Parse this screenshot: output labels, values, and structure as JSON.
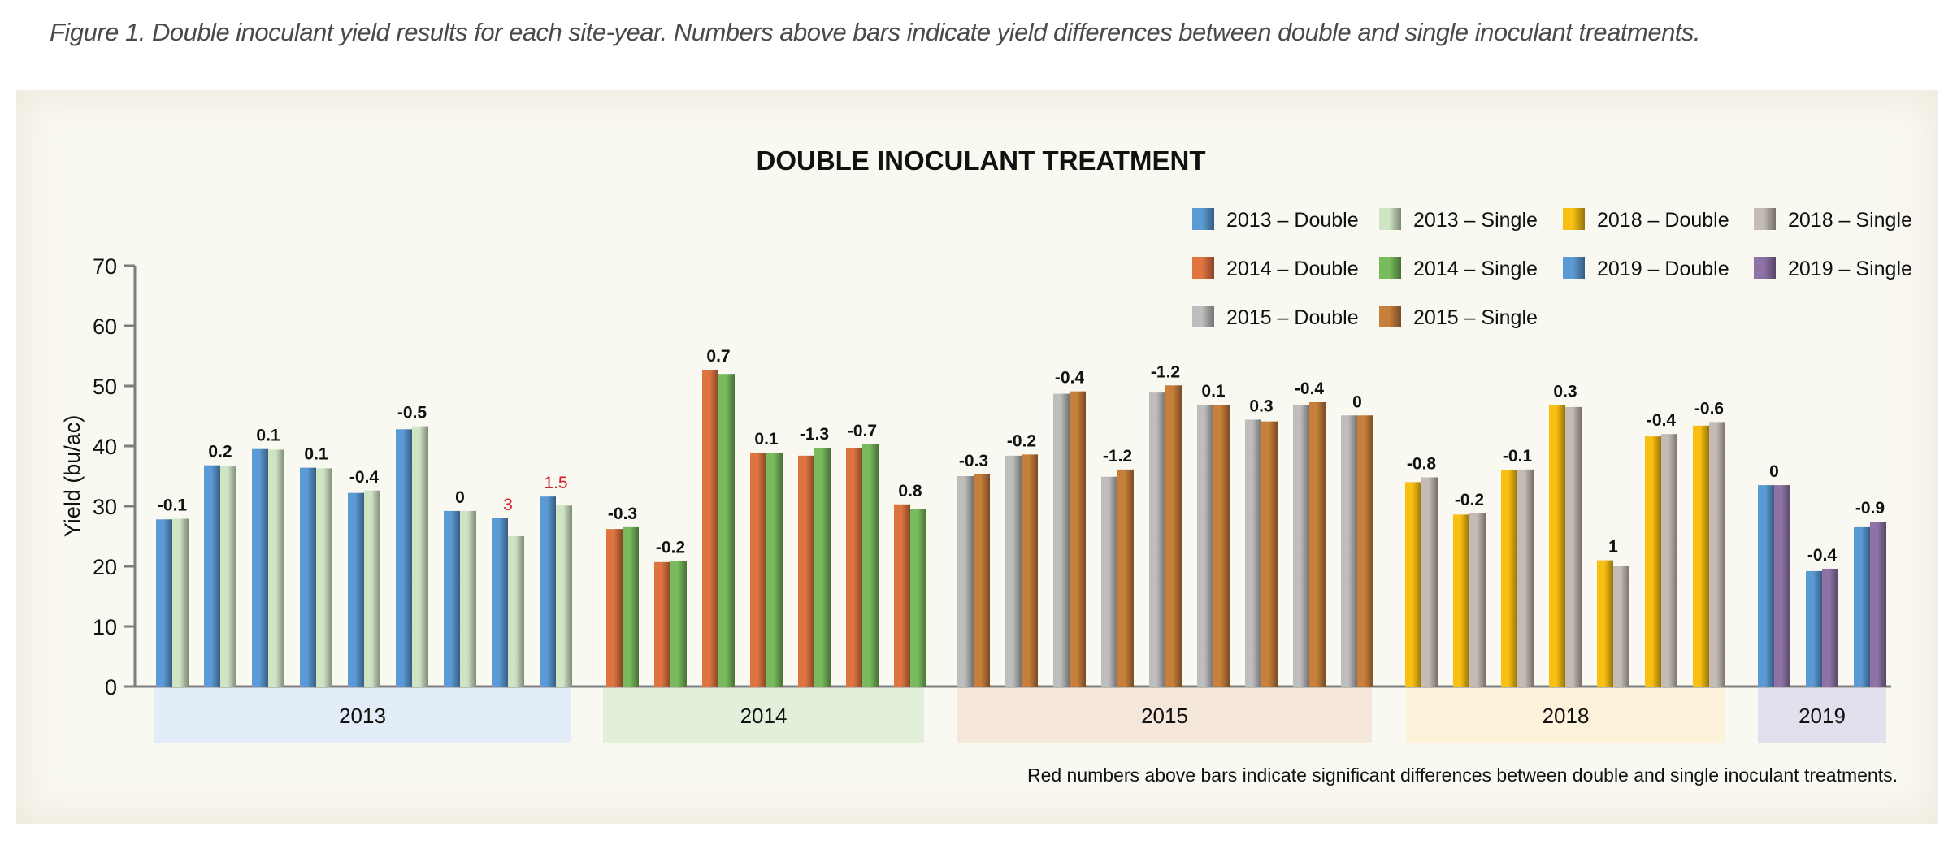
{
  "caption": "Figure 1. Double inoculant yield results for each site-year. Numbers above bars indicate yield differences between double and single inoculant treatments.",
  "chart_data": {
    "type": "bar",
    "title": "DOUBLE INOCULANT TREATMENT",
    "xlabel": "",
    "ylabel": "Yield (bu/ac)",
    "ylim": [
      0,
      70
    ],
    "yticks": [
      0,
      10,
      20,
      30,
      40,
      50,
      60,
      70
    ],
    "grid": false,
    "legend_position": "top-right",
    "note": "Red numbers above bars indicate significant differences between double and single inoculant treatments.",
    "legend": [
      {
        "label": "2013 – Double",
        "color": "#5b9bd5"
      },
      {
        "label": "2013 – Single",
        "color": "#cfe4c4"
      },
      {
        "label": "2018 – Double",
        "color": "#f8c012"
      },
      {
        "label": "2018 – Single",
        "color": "#c4bcb2"
      },
      {
        "label": "2014 – Double",
        "color": "#e07441"
      },
      {
        "label": "2014 – Single",
        "color": "#78bb5c"
      },
      {
        "label": "2019 – Double",
        "color": "#5b9bd5"
      },
      {
        "label": "2019 – Single",
        "color": "#8f73a6"
      },
      {
        "label": "2015 – Double",
        "color": "#bdbdbd"
      },
      {
        "label": "2015 – Single",
        "color": "#c87f3c"
      }
    ],
    "groups": [
      {
        "year": "2013",
        "band_color": "#e2edf8",
        "double_color": "#5b9bd5",
        "single_color": "#cfe4c4",
        "double": [
          27.8,
          36.8,
          39.5,
          36.4,
          32.2,
          42.8,
          29.2,
          28.0,
          31.6
        ],
        "single": [
          27.9,
          36.6,
          39.4,
          36.3,
          32.6,
          43.3,
          29.2,
          25.0,
          30.1
        ],
        "differences": [
          "-0.1",
          "0.2",
          "0.1",
          "0.1",
          "-0.4",
          "-0.5",
          "0",
          "3",
          "1.5"
        ],
        "significant": [
          false,
          false,
          false,
          false,
          false,
          false,
          false,
          true,
          true
        ]
      },
      {
        "year": "2014",
        "band_color": "#e2f0da",
        "double_color": "#e07441",
        "single_color": "#78bb5c",
        "double": [
          26.2,
          20.7,
          52.7,
          38.9,
          38.4,
          39.6,
          30.3
        ],
        "single": [
          26.5,
          20.9,
          52.0,
          38.8,
          39.7,
          40.3,
          29.5
        ],
        "differences": [
          "-0.3",
          "-0.2",
          "0.7",
          "0.1",
          "-1.3",
          "-0.7",
          "0.8"
        ],
        "significant": [
          false,
          false,
          false,
          false,
          false,
          false,
          false
        ]
      },
      {
        "year": "2015",
        "band_color": "#f5e8da",
        "double_color": "#bdbdbd",
        "single_color": "#c87f3c",
        "double": [
          35.0,
          38.4,
          48.7,
          34.9,
          48.9,
          46.9,
          44.4,
          46.9,
          45.1
        ],
        "single": [
          35.3,
          38.6,
          49.1,
          36.1,
          50.1,
          46.8,
          44.1,
          47.3,
          45.1
        ],
        "differences": [
          "-0.3",
          "-0.2",
          "-0.4",
          "-1.2",
          "-1.2",
          "0.1",
          "0.3",
          "-0.4",
          "0"
        ],
        "significant": [
          false,
          false,
          false,
          false,
          false,
          false,
          false,
          false,
          false
        ]
      },
      {
        "year": "2018",
        "band_color": "#fdf3da",
        "double_color": "#f8c012",
        "single_color": "#c4bcb2",
        "double": [
          34.0,
          28.6,
          36.0,
          46.8,
          21.0,
          41.6,
          43.4
        ],
        "single": [
          34.8,
          28.8,
          36.1,
          46.5,
          20.0,
          42.0,
          44.0
        ],
        "differences": [
          "-0.8",
          "-0.2",
          "-0.1",
          "0.3",
          "1",
          "-0.4",
          "-0.6"
        ],
        "significant": [
          false,
          false,
          false,
          false,
          false,
          false,
          false
        ]
      },
      {
        "year": "2019",
        "band_color": "#e3dfed",
        "double_color": "#5b9bd5",
        "single_color": "#8f73a6",
        "double": [
          33.5,
          19.2,
          26.5
        ],
        "single": [
          33.5,
          19.6,
          27.4
        ],
        "differences": [
          "0",
          "-0.4",
          "-0.9"
        ],
        "significant": [
          false,
          false,
          false
        ]
      }
    ]
  }
}
